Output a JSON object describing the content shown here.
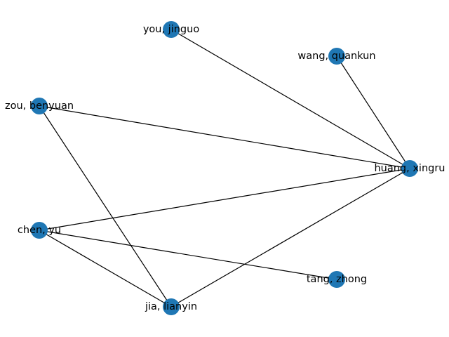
{
  "graph": {
    "node_color": "#1f77b4",
    "edge_color": "#000000",
    "nodes": [
      {
        "id": "you",
        "label": "you, jinguo"
      },
      {
        "id": "wang",
        "label": "wang, quankun"
      },
      {
        "id": "zou",
        "label": "zou, benyuan"
      },
      {
        "id": "huang",
        "label": "huang, xingru"
      },
      {
        "id": "chen",
        "label": "chen, yu"
      },
      {
        "id": "tang",
        "label": "tang, zhong"
      },
      {
        "id": "jia",
        "label": "jia, lianyin"
      }
    ],
    "edges": [
      [
        "you",
        "huang"
      ],
      [
        "wang",
        "huang"
      ],
      [
        "zou",
        "huang"
      ],
      [
        "zou",
        "jia"
      ],
      [
        "chen",
        "huang"
      ],
      [
        "chen",
        "tang"
      ],
      [
        "chen",
        "jia"
      ],
      [
        "jia",
        "huang"
      ]
    ]
  }
}
